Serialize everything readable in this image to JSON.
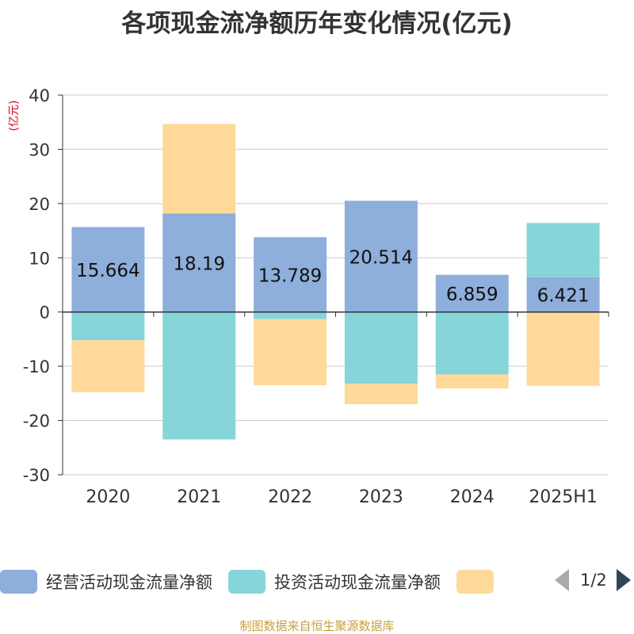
{
  "title": "各项现金流净额历年变化情况(亿元)",
  "source": "制图数据来自恒生聚源数据库",
  "pager": {
    "text": "1/2"
  },
  "legend": [
    {
      "label": "经营活动现金流量净额",
      "color": "#8eaedb"
    },
    {
      "label": "投资活动现金流量净额",
      "color": "#86d5d8"
    },
    {
      "label": "",
      "color": "#fed99a"
    }
  ],
  "chart_data": {
    "type": "bar",
    "stacked": true,
    "ylabel": "(亿元)",
    "ylim": [
      -30,
      40
    ],
    "yticks": [
      40,
      30,
      20,
      10,
      0,
      -10,
      -20,
      -30
    ],
    "grid": true,
    "categories": [
      "2020",
      "2021",
      "2022",
      "2023",
      "2024",
      "2025H1"
    ],
    "series": [
      {
        "name": "经营活动现金流量净额",
        "color": "#8eaedb",
        "values": [
          15.664,
          18.19,
          13.789,
          20.514,
          6.859,
          6.421
        ],
        "labels": [
          "15.664",
          "18.19",
          "13.789",
          "20.514",
          "6.859",
          "6.421"
        ]
      },
      {
        "name": "投资活动现金流量净额",
        "color": "#86d5d8",
        "values": [
          -5.2,
          -23.5,
          -1.3,
          -13.2,
          -11.5,
          10.0
        ]
      },
      {
        "name": "",
        "color": "#fed99a",
        "values": [
          -9.6,
          16.5,
          -12.2,
          -3.8,
          -2.6,
          -13.6
        ]
      }
    ]
  }
}
